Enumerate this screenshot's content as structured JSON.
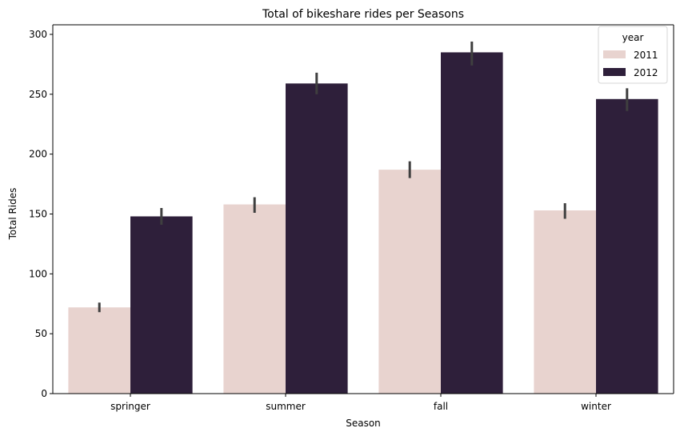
{
  "chart_data": {
    "type": "bar",
    "title": "Total of bikeshare rides per Seasons",
    "xlabel": "Season",
    "ylabel": "Total Rides",
    "categories": [
      "springer",
      "summer",
      "fall",
      "winter"
    ],
    "ylim": [
      0,
      308
    ],
    "yticks": [
      0,
      50,
      100,
      150,
      200,
      250,
      300
    ],
    "grid": false,
    "legend": {
      "title": "year",
      "placement": "top-right"
    },
    "series": [
      {
        "name": "2011",
        "color": "#e8d3cf",
        "values": [
          72,
          158,
          187,
          153
        ],
        "err_low": [
          68,
          151,
          180,
          146
        ],
        "err_high": [
          76,
          164,
          194,
          159
        ]
      },
      {
        "name": "2012",
        "color": "#2e1f3a",
        "values": [
          148,
          259,
          285,
          246
        ],
        "err_low": [
          141,
          250,
          274,
          236
        ],
        "err_high": [
          155,
          268,
          294,
          255
        ]
      }
    ]
  }
}
